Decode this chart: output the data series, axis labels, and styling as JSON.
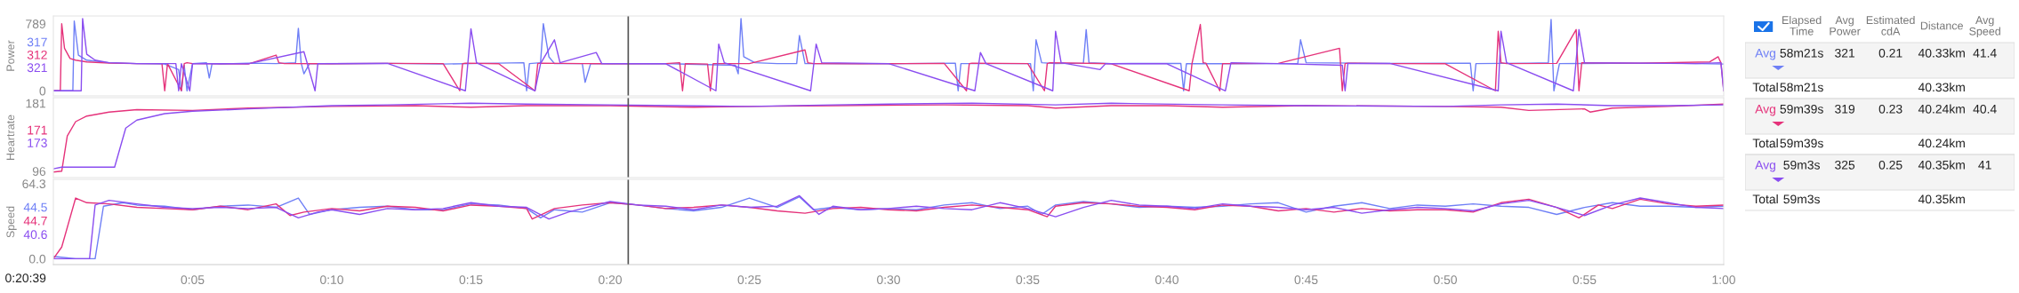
{
  "chart_data": [
    {
      "type": "line",
      "ylabel": "Power",
      "xlim": [
        0,
        60
      ],
      "ylim": [
        -60,
        880
      ],
      "yticks": [
        0,
        789
      ],
      "tick_labels": "y",
      "annotations": [
        "317",
        "312",
        "321"
      ],
      "ref_lines": [
        {
          "axis": "x",
          "value": 20.65,
          "color": "#555555"
        }
      ],
      "series": [
        {
          "color": "#6e7ff6",
          "x": [
            0,
            0.7,
            0.75,
            0.9,
            1.2,
            2,
            3,
            4,
            4.5,
            4.6,
            4.7,
            4.8,
            5,
            5.5,
            5.6,
            5.7,
            6,
            7,
            8,
            8.7,
            8.8,
            8.9,
            9,
            9.2,
            10,
            12,
            14,
            15,
            16,
            16.9,
            17.0,
            17.1,
            17.5,
            17.6,
            17.8,
            18,
            19,
            19.1,
            19.3,
            20,
            22,
            24.5,
            24.6,
            24.7,
            24.8,
            25.2,
            26,
            26.7,
            26.8,
            27,
            30,
            32.4,
            32.5,
            32.6,
            34,
            35.1,
            35.2,
            35.3,
            35.5,
            36,
            37,
            37.1,
            37.2,
            38,
            40.5,
            40.6,
            40.7,
            42,
            44.7,
            44.8,
            45,
            48,
            50.9,
            51,
            51.1,
            53,
            53.7,
            53.8,
            53.9,
            54.1,
            56,
            58,
            60
          ],
          "values": [
            0,
            0,
            820,
            420,
            360,
            330,
            320,
            315,
            250,
            0,
            300,
            0,
            320,
            330,
            150,
            320,
            315,
            325,
            320,
            330,
            735,
            330,
            200,
            320,
            318,
            322,
            315,
            320,
            325,
            330,
            0,
            320,
            330,
            790,
            400,
            320,
            320,
            100,
            320,
            318,
            320,
            300,
            200,
            850,
            400,
            330,
            320,
            320,
            650,
            320,
            318,
            325,
            0,
            320,
            320,
            320,
            0,
            600,
            330,
            320,
            325,
            720,
            330,
            320,
            322,
            0,
            320,
            318,
            320,
            600,
            330,
            322,
            325,
            0,
            320,
            325,
            330,
            840,
            0,
            320,
            322,
            325,
            315
          ]
        },
        {
          "color": "#e5327a",
          "x": [
            0,
            0.25,
            0.3,
            0.4,
            0.6,
            0.8,
            1.2,
            2,
            3,
            3.9,
            4.0,
            4.1,
            4.6,
            4.7,
            4.8,
            5,
            7,
            8,
            8.1,
            8.3,
            10,
            12,
            14,
            14.6,
            14.7,
            14.8,
            16,
            17.3,
            17.4,
            17.5,
            19,
            20,
            22,
            22.5,
            22.6,
            22.7,
            23.5,
            23.6,
            23.7,
            25,
            27,
            27.1,
            27.3,
            29,
            32,
            32.8,
            32.9,
            33,
            35,
            35.6,
            35.7,
            35.8,
            38,
            40.8,
            40.9,
            41.2,
            41.3,
            41.4,
            41.9,
            42,
            42.1,
            44,
            46.2,
            46.3,
            46.4,
            46.5,
            48,
            50,
            51.8,
            51.9,
            52.0,
            52.2,
            54,
            54.7,
            54.8,
            54.9,
            57,
            59.5,
            59.8,
            59.9,
            60
          ],
          "values": [
            0,
            0,
            789,
            500,
            380,
            360,
            340,
            325,
            320,
            320,
            0,
            320,
            0,
            320,
            330,
            320,
            315,
            420,
            330,
            320,
            318,
            322,
            320,
            0,
            320,
            325,
            318,
            0,
            320,
            325,
            320,
            318,
            320,
            330,
            0,
            320,
            315,
            0,
            320,
            320,
            480,
            330,
            320,
            318,
            322,
            0,
            320,
            325,
            320,
            0,
            320,
            330,
            318,
            0,
            320,
            780,
            330,
            325,
            0,
            320,
            320,
            322,
            500,
            0,
            320,
            325,
            320,
            318,
            0,
            700,
            330,
            320,
            322,
            720,
            0,
            330,
            325,
            340,
            400,
            330,
            0
          ]
        },
        {
          "color": "#8a4df0",
          "x": [
            0,
            1.0,
            1.05,
            1.2,
            1.5,
            2,
            3,
            4.4,
            4.5,
            4.6,
            4.9,
            5.0,
            7,
            9.0,
            9.4,
            9.5,
            12,
            14.8,
            15.0,
            15.2,
            17.3,
            17.5,
            18.0,
            18.2,
            19.5,
            19.7,
            22,
            23.8,
            23.9,
            24.1,
            27.2,
            27.4,
            27.6,
            30,
            33.1,
            33.3,
            33.5,
            35.9,
            36.0,
            36.2,
            37.6,
            37.8,
            40,
            42.1,
            42.3,
            44,
            46.3,
            46.4,
            46.5,
            48,
            51.9,
            52.0,
            52.2,
            54.6,
            54.8,
            55.0,
            57,
            59,
            59.9,
            60
          ],
          "values": [
            0,
            0,
            850,
            430,
            360,
            330,
            320,
            320,
            0,
            320,
            0,
            320,
            318,
            460,
            0,
            320,
            322,
            0,
            730,
            330,
            0,
            320,
            600,
            330,
            450,
            320,
            318,
            0,
            550,
            330,
            0,
            550,
            330,
            320,
            0,
            450,
            320,
            0,
            700,
            330,
            250,
            320,
            318,
            0,
            330,
            320,
            300,
            0,
            320,
            322,
            0,
            700,
            330,
            0,
            720,
            330,
            325,
            320,
            330,
            0
          ]
        }
      ]
    },
    {
      "type": "line",
      "ylabel": "Heartrate",
      "xlim": [
        0,
        60
      ],
      "ylim": [
        88,
        188
      ],
      "yticks": [
        96,
        181
      ],
      "tick_labels": "y",
      "annotations": [
        "171",
        "173"
      ],
      "ref_lines": [
        {
          "axis": "x",
          "value": 20.65,
          "color": "#555555"
        }
      ],
      "series": [
        {
          "color": "#e5327a",
          "x": [
            0,
            0.3,
            0.5,
            0.8,
            1.2,
            2,
            3,
            5,
            7,
            10,
            13,
            15,
            17,
            20,
            23,
            25,
            28,
            32,
            35,
            36,
            38,
            40,
            42,
            45,
            50,
            52,
            53,
            55,
            55.2,
            56,
            58,
            60
          ],
          "values": [
            95,
            96,
            140,
            158,
            165,
            170,
            173,
            172,
            175,
            177,
            178,
            176,
            178,
            178,
            176,
            177,
            178,
            179,
            178,
            175,
            178,
            178,
            176,
            178,
            177,
            176,
            172,
            174,
            170,
            175,
            177,
            180
          ]
        },
        {
          "color": "#8a4df0",
          "x": [
            0,
            0.3,
            2.2,
            2.6,
            3,
            4,
            5,
            7,
            10,
            12,
            15,
            17,
            20,
            25,
            28,
            30,
            33,
            36,
            38,
            42,
            45,
            50,
            52,
            54,
            56,
            58,
            60
          ],
          "values": [
            99,
            101,
            101,
            150,
            160,
            168,
            171,
            174,
            178,
            179,
            181,
            180,
            179,
            177,
            179,
            180,
            181,
            179,
            181,
            179,
            178,
            177,
            179,
            180,
            178,
            178,
            179
          ]
        }
      ]
    },
    {
      "type": "line",
      "ylabel": "Speed",
      "xlim": [
        0,
        60
      ],
      "ylim": [
        -5,
        68
      ],
      "yticks": [
        {
          "value": 0,
          "label": "0.0"
        },
        64.3
      ],
      "xticks": [
        {
          "value": 0,
          "label": null
        },
        {
          "value": 5,
          "label": "0:05"
        },
        {
          "value": 10,
          "label": "0:10"
        },
        {
          "value": 15,
          "label": "0:15"
        },
        {
          "value": 20,
          "label": "0:20"
        },
        {
          "value": 25,
          "label": "0:25"
        },
        {
          "value": 30,
          "label": "0:30"
        },
        {
          "value": 35,
          "label": "0:35"
        },
        {
          "value": 40,
          "label": "0:40"
        },
        {
          "value": 45,
          "label": "0:45"
        },
        {
          "value": 50,
          "label": "0:50"
        },
        {
          "value": 55,
          "label": "0:55"
        },
        {
          "value": 60,
          "label": "1:00"
        }
      ],
      "annotations": [
        "44.5",
        "44.7",
        "40.6",
        "0:20:39"
      ],
      "ref_lines": [
        {
          "axis": "x",
          "value": 20.65,
          "color": "#555555"
        }
      ],
      "series": [
        {
          "color": "#6e7ff6",
          "x": [
            0,
            0.8,
            1.5,
            1.8,
            2.5,
            3,
            4,
            5,
            6,
            7,
            8,
            8.8,
            9.2,
            10,
            11,
            12,
            13,
            14,
            15,
            16,
            17,
            17.5,
            18,
            19,
            20,
            21,
            22,
            23,
            24,
            25,
            26,
            26.8,
            27.3,
            28,
            29,
            30,
            31,
            32,
            33,
            34,
            35,
            35.5,
            36,
            37,
            38,
            39,
            40,
            41,
            42,
            43,
            44,
            45,
            46,
            47,
            48,
            49,
            50,
            51,
            52,
            53,
            54,
            55,
            56,
            57,
            58,
            59,
            60
          ],
          "values": [
            2,
            0,
            0,
            45,
            48,
            46,
            45,
            42,
            45,
            46,
            44,
            52,
            38,
            42,
            44,
            45,
            42,
            42,
            47,
            46,
            43,
            35,
            42,
            40,
            48,
            46,
            43,
            41,
            44,
            52,
            44,
            53,
            42,
            44,
            42,
            43,
            42,
            46,
            48,
            43,
            45,
            38,
            46,
            49,
            47,
            44,
            45,
            44,
            45,
            47,
            48,
            40,
            45,
            48,
            43,
            46,
            45,
            47,
            45,
            44,
            38,
            44,
            48,
            45,
            45,
            44,
            45
          ]
        },
        {
          "color": "#e5327a",
          "x": [
            0,
            0.3,
            0.8,
            1.2,
            2,
            3,
            4,
            5,
            6,
            7,
            8,
            8.5,
            9,
            10,
            11,
            12,
            13,
            14,
            15,
            16,
            17,
            17.2,
            18,
            19,
            20,
            21,
            22,
            23,
            24,
            25,
            26,
            27,
            28,
            29,
            30,
            31,
            32,
            33,
            34,
            35,
            35.7,
            36,
            37,
            38,
            39,
            40,
            41,
            42,
            43,
            44,
            45,
            46,
            47,
            48,
            49,
            50,
            51,
            52,
            53,
            54,
            54.8,
            55.5,
            56,
            57,
            58,
            59,
            60
          ],
          "values": [
            0,
            10,
            52,
            48,
            47,
            44,
            43,
            42,
            45,
            42,
            47,
            37,
            40,
            43,
            41,
            45,
            44,
            41,
            46,
            45,
            43,
            34,
            43,
            46,
            48,
            46,
            43,
            44,
            46,
            44,
            41,
            39,
            43,
            44,
            42,
            41,
            44,
            46,
            44,
            42,
            36,
            45,
            48,
            47,
            45,
            44,
            42,
            46,
            45,
            41,
            43,
            40,
            43,
            41,
            42,
            42,
            40,
            48,
            51,
            44,
            35,
            46,
            43,
            51,
            47,
            45,
            46
          ]
        },
        {
          "color": "#8a4df0",
          "x": [
            0,
            1,
            1.3,
            1.5,
            2,
            3,
            4,
            5,
            6,
            7,
            8,
            8.8,
            9.5,
            10,
            11,
            12,
            13,
            14,
            15,
            16,
            17,
            17.8,
            18.5,
            19,
            20,
            21,
            22,
            23,
            24,
            25,
            26,
            26.8,
            27.5,
            28,
            29,
            30,
            31,
            32,
            33,
            34,
            35,
            36,
            37,
            38,
            39,
            40,
            41,
            42,
            43,
            44,
            45,
            46,
            47,
            48,
            49,
            50,
            51,
            52,
            53,
            54,
            55,
            56,
            57,
            58,
            59,
            60
          ],
          "values": [
            0,
            0,
            0,
            46,
            50,
            47,
            44,
            43,
            44,
            43,
            44,
            35,
            40,
            42,
            38,
            43,
            42,
            43,
            48,
            45,
            44,
            34,
            40,
            43,
            49,
            46,
            45,
            42,
            46,
            44,
            45,
            54,
            38,
            45,
            42,
            43,
            45,
            43,
            42,
            48,
            43,
            36,
            44,
            50,
            46,
            45,
            43,
            47,
            45,
            44,
            42,
            44,
            39,
            42,
            44,
            43,
            41,
            47,
            50,
            44,
            37,
            46,
            52,
            48,
            44,
            43
          ]
        }
      ]
    },
    {
      "type": "other",
      "categories": [
        null,
        "Elapsed\nTime",
        "Avg\nPower",
        "Estimated\ncdA",
        "Distance",
        "Avg\nSpeed"
      ],
      "cell_labels": [
        [
          "Avg",
          "58m21s",
          "321",
          "0.21",
          "40.33km",
          "41.4"
        ],
        [
          "Total",
          "58m21s",
          null,
          null,
          "40.33km",
          null
        ],
        [
          "Avg",
          "59m39s",
          "319",
          "0.23",
          "40.24km",
          "40.4"
        ],
        [
          "Total",
          "59m39s",
          null,
          null,
          "40.24km",
          null
        ],
        [
          "Avg",
          "59m3s",
          "325",
          "0.25",
          "40.35km",
          "41"
        ],
        [
          "Total",
          "59m3s",
          null,
          null,
          "40.35km",
          null
        ]
      ],
      "colors": [
        "#6e7ff6",
        null,
        "#e5327a",
        null,
        "#8a4df0",
        null
      ]
    }
  ]
}
